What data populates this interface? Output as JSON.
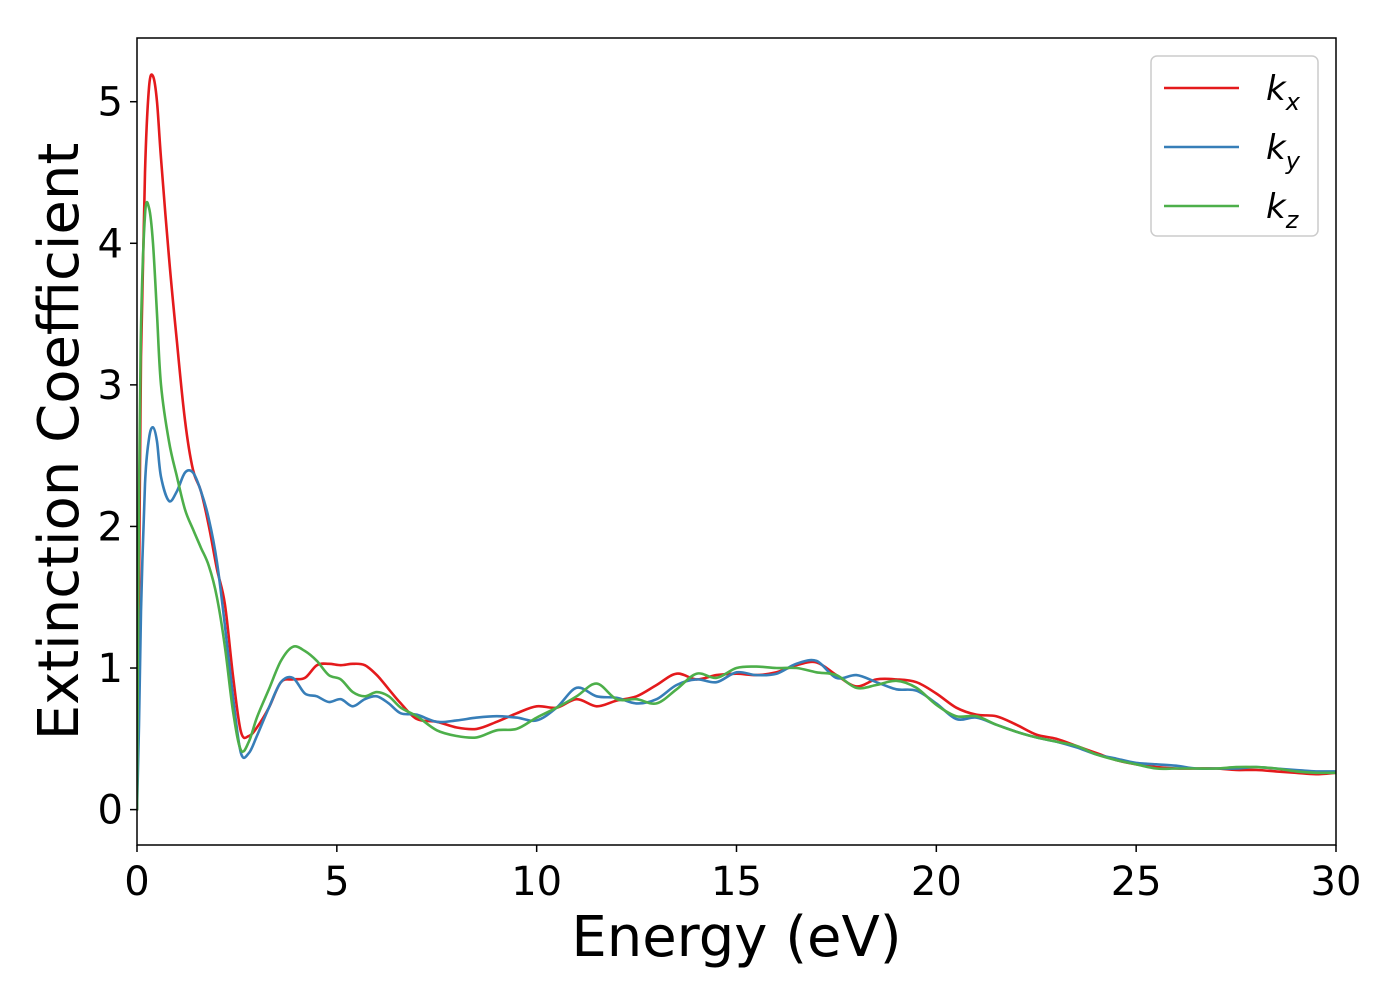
{
  "chart_data": {
    "type": "line",
    "title": "",
    "xlabel": "Energy (eV)",
    "ylabel": "Extinction Coefficient",
    "xlim": [
      0,
      30
    ],
    "ylim": [
      -0.25,
      5.45
    ],
    "xticks": [
      0,
      5,
      10,
      15,
      20,
      25,
      30
    ],
    "yticks": [
      0,
      1,
      2,
      3,
      4,
      5
    ],
    "grid": false,
    "legend_position": "top-right",
    "series": [
      {
        "name": "k",
        "subscript": "x",
        "color": "#e41a1c",
        "x": [
          0,
          0.05,
          0.1,
          0.2,
          0.3,
          0.4,
          0.5,
          0.6,
          0.8,
          1.0,
          1.2,
          1.4,
          1.6,
          1.8,
          2.0,
          2.2,
          2.4,
          2.6,
          2.8,
          3.0,
          3.3,
          3.6,
          3.9,
          4.2,
          4.5,
          4.8,
          5.1,
          5.4,
          5.7,
          6.0,
          6.3,
          6.6,
          7.0,
          7.5,
          8.0,
          8.5,
          9.0,
          9.5,
          10.0,
          10.5,
          11.0,
          11.5,
          12.0,
          12.5,
          13.0,
          13.5,
          14.0,
          14.5,
          15.0,
          15.5,
          16.0,
          16.5,
          17.0,
          17.5,
          18.0,
          18.5,
          19.0,
          19.5,
          20.0,
          20.5,
          21.0,
          21.5,
          22.0,
          22.5,
          23.0,
          23.5,
          24.0,
          24.5,
          25.0,
          25.5,
          26.0,
          26.5,
          27.0,
          27.5,
          28.0,
          28.5,
          29.0,
          29.5,
          30.0
        ],
        "y": [
          0,
          1.5,
          3.2,
          4.5,
          5.1,
          5.18,
          5.0,
          4.6,
          3.9,
          3.3,
          2.75,
          2.4,
          2.25,
          2.0,
          1.7,
          1.45,
          0.95,
          0.55,
          0.52,
          0.58,
          0.72,
          0.9,
          0.92,
          0.93,
          1.02,
          1.03,
          1.02,
          1.03,
          1.02,
          0.95,
          0.85,
          0.75,
          0.64,
          0.62,
          0.58,
          0.57,
          0.62,
          0.68,
          0.73,
          0.72,
          0.78,
          0.73,
          0.77,
          0.8,
          0.88,
          0.96,
          0.92,
          0.95,
          0.96,
          0.95,
          0.97,
          1.02,
          1.04,
          0.95,
          0.87,
          0.92,
          0.92,
          0.9,
          0.82,
          0.72,
          0.67,
          0.66,
          0.6,
          0.53,
          0.5,
          0.45,
          0.4,
          0.35,
          0.32,
          0.3,
          0.29,
          0.29,
          0.29,
          0.28,
          0.28,
          0.27,
          0.26,
          0.25,
          0.26
        ]
      },
      {
        "name": "k",
        "subscript": "y",
        "color": "#377eb8",
        "x": [
          0,
          0.05,
          0.1,
          0.2,
          0.3,
          0.4,
          0.5,
          0.6,
          0.8,
          1.0,
          1.2,
          1.4,
          1.6,
          1.8,
          2.0,
          2.2,
          2.4,
          2.6,
          2.8,
          3.0,
          3.3,
          3.6,
          3.9,
          4.2,
          4.5,
          4.8,
          5.1,
          5.4,
          5.7,
          6.0,
          6.3,
          6.6,
          7.0,
          7.5,
          8.0,
          8.5,
          9.0,
          9.5,
          10.0,
          10.5,
          11.0,
          11.5,
          12.0,
          12.5,
          13.0,
          13.5,
          14.0,
          14.5,
          15.0,
          15.5,
          16.0,
          16.5,
          17.0,
          17.5,
          18.0,
          18.5,
          19.0,
          19.5,
          20.0,
          20.5,
          21.0,
          21.5,
          22.0,
          22.5,
          23.0,
          23.5,
          24.0,
          24.5,
          25.0,
          25.5,
          26.0,
          26.5,
          27.0,
          27.5,
          28.0,
          28.5,
          29.0,
          29.5,
          30.0
        ],
        "y": [
          0,
          0.6,
          1.4,
          2.3,
          2.62,
          2.7,
          2.6,
          2.35,
          2.18,
          2.25,
          2.38,
          2.38,
          2.25,
          2.05,
          1.75,
          1.3,
          0.8,
          0.4,
          0.4,
          0.52,
          0.72,
          0.9,
          0.93,
          0.82,
          0.8,
          0.76,
          0.78,
          0.73,
          0.78,
          0.8,
          0.75,
          0.68,
          0.67,
          0.62,
          0.63,
          0.65,
          0.66,
          0.65,
          0.63,
          0.72,
          0.86,
          0.8,
          0.79,
          0.75,
          0.78,
          0.88,
          0.92,
          0.9,
          0.97,
          0.95,
          0.96,
          1.03,
          1.05,
          0.93,
          0.95,
          0.9,
          0.85,
          0.84,
          0.75,
          0.64,
          0.65,
          0.6,
          0.55,
          0.51,
          0.48,
          0.44,
          0.39,
          0.36,
          0.33,
          0.32,
          0.31,
          0.29,
          0.29,
          0.29,
          0.3,
          0.29,
          0.28,
          0.27,
          0.27
        ]
      },
      {
        "name": "k",
        "subscript": "z",
        "color": "#4daf4a",
        "x": [
          0,
          0.05,
          0.1,
          0.2,
          0.3,
          0.4,
          0.5,
          0.6,
          0.8,
          1.0,
          1.2,
          1.4,
          1.6,
          1.8,
          2.0,
          2.2,
          2.4,
          2.6,
          2.8,
          3.0,
          3.3,
          3.6,
          3.9,
          4.2,
          4.5,
          4.8,
          5.1,
          5.4,
          5.7,
          6.0,
          6.3,
          6.6,
          7.0,
          7.5,
          8.0,
          8.5,
          9.0,
          9.5,
          10.0,
          10.5,
          11.0,
          11.5,
          12.0,
          12.5,
          13.0,
          13.5,
          14.0,
          14.5,
          15.0,
          15.5,
          16.0,
          16.5,
          17.0,
          17.5,
          18.0,
          18.5,
          19.0,
          19.5,
          20.0,
          20.5,
          21.0,
          21.5,
          22.0,
          22.5,
          23.0,
          23.5,
          24.0,
          24.5,
          25.0,
          25.5,
          26.0,
          26.5,
          27.0,
          27.5,
          28.0,
          28.5,
          29.0,
          29.5,
          30.0
        ],
        "y": [
          0,
          2.2,
          3.4,
          4.2,
          4.25,
          4.0,
          3.5,
          3.0,
          2.6,
          2.35,
          2.12,
          1.98,
          1.85,
          1.72,
          1.5,
          1.15,
          0.7,
          0.42,
          0.48,
          0.65,
          0.85,
          1.05,
          1.15,
          1.12,
          1.05,
          0.95,
          0.92,
          0.83,
          0.8,
          0.83,
          0.8,
          0.72,
          0.66,
          0.56,
          0.52,
          0.51,
          0.56,
          0.57,
          0.65,
          0.72,
          0.8,
          0.89,
          0.78,
          0.78,
          0.75,
          0.85,
          0.96,
          0.93,
          1.0,
          1.01,
          1.0,
          1.0,
          0.97,
          0.95,
          0.86,
          0.88,
          0.91,
          0.86,
          0.74,
          0.66,
          0.66,
          0.6,
          0.55,
          0.51,
          0.48,
          0.45,
          0.39,
          0.35,
          0.32,
          0.29,
          0.29,
          0.29,
          0.29,
          0.3,
          0.3,
          0.29,
          0.27,
          0.26,
          0.26
        ]
      }
    ]
  }
}
